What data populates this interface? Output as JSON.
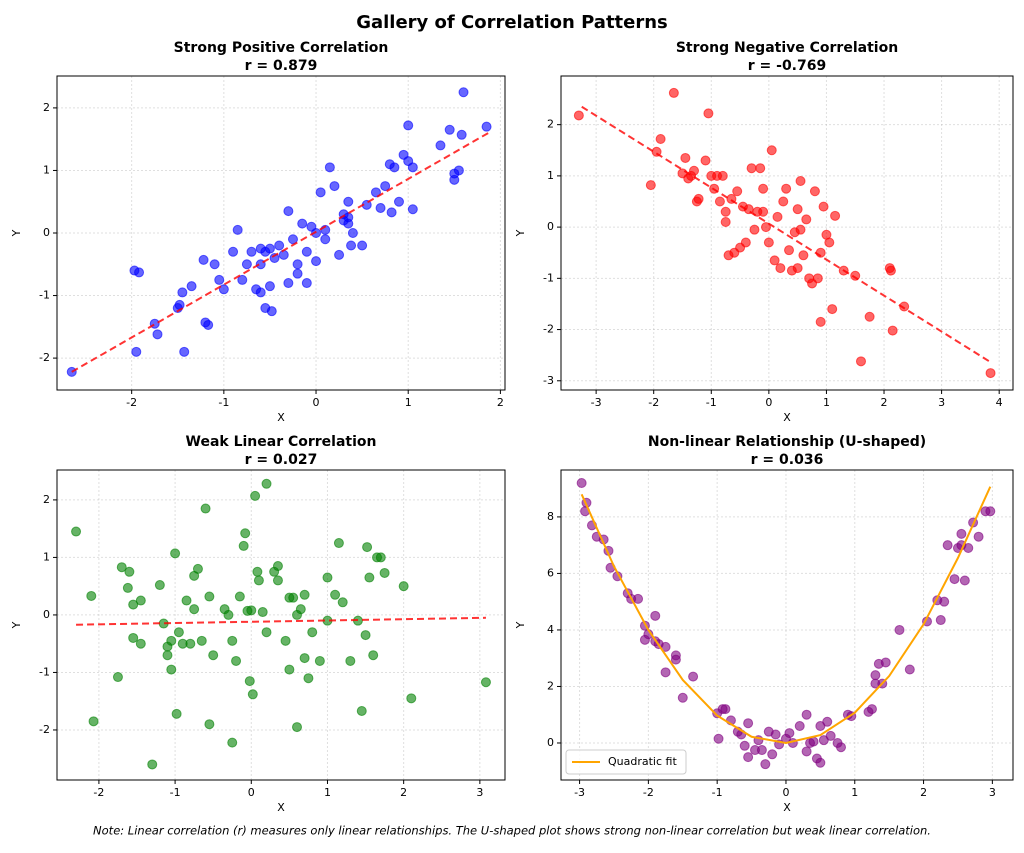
{
  "title": "Gallery of Correlation Patterns",
  "note": "Note: Linear correlation (r) measures only linear relationships. The U-shaped plot shows strong non-linear correlation but weak linear correlation.",
  "chart_data": [
    {
      "type": "scatter",
      "title": "Strong Positive Correlation",
      "subtitle": "r = 0.879",
      "xlabel": "X",
      "ylabel": "Y",
      "color": "#0000ff",
      "grid": true,
      "xlim": [
        -2.81,
        2.05
      ],
      "ylim": [
        -2.51,
        2.51
      ],
      "xticks": [
        -2,
        -1,
        0,
        1,
        2
      ],
      "yticks": [
        -2,
        -1,
        0,
        1,
        2
      ],
      "x": [
        -2.65,
        -1.97,
        -1.92,
        -1.95,
        -1.75,
        -1.72,
        -1.5,
        -1.48,
        -1.45,
        -1.43,
        -1.35,
        -1.22,
        -1.2,
        -1.17,
        -1.1,
        -1.05,
        -1.0,
        -0.9,
        -0.85,
        -0.8,
        -0.75,
        -0.7,
        -0.65,
        -0.6,
        -0.6,
        -0.55,
        -0.55,
        -0.5,
        -0.5,
        -0.48,
        -0.45,
        -0.4,
        -0.35,
        -0.3,
        -0.3,
        -0.25,
        -0.2,
        -0.2,
        -0.15,
        -0.1,
        -0.1,
        -0.05,
        0.0,
        0.0,
        0.05,
        0.1,
        0.1,
        0.15,
        0.2,
        0.25,
        0.3,
        0.35,
        0.35,
        0.35,
        0.38,
        0.4,
        0.5,
        0.55,
        0.65,
        0.7,
        0.75,
        0.8,
        0.82,
        0.85,
        0.9,
        0.95,
        1.0,
        1.0,
        1.05,
        1.05,
        1.35,
        1.45,
        1.5,
        1.55,
        1.58,
        1.6,
        1.85,
        1.5,
        0.3,
        -0.6
      ],
      "values": [
        -2.22,
        -0.6,
        -0.63,
        -1.9,
        -1.45,
        -1.62,
        -1.2,
        -1.15,
        -0.95,
        -1.9,
        -0.85,
        -0.43,
        -1.43,
        -1.47,
        -0.5,
        -0.75,
        -0.9,
        -0.3,
        0.05,
        -0.75,
        -0.5,
        -0.3,
        -0.9,
        -0.95,
        -0.5,
        -0.3,
        -1.2,
        -0.25,
        -0.85,
        -1.25,
        -0.4,
        -0.2,
        -0.35,
        -0.8,
        0.35,
        -0.1,
        -0.5,
        -0.65,
        0.15,
        -0.3,
        -0.8,
        0.1,
        -0.45,
        0.0,
        0.65,
        -0.1,
        0.05,
        1.05,
        0.75,
        -0.35,
        0.3,
        0.25,
        0.15,
        0.5,
        -0.2,
        0.0,
        -0.2,
        0.45,
        0.65,
        0.4,
        0.75,
        1.1,
        0.33,
        1.05,
        0.5,
        1.25,
        1.15,
        1.72,
        0.38,
        1.05,
        1.4,
        1.65,
        0.85,
        1.0,
        1.57,
        2.25,
        1.7,
        0.95,
        0.2,
        -0.25
      ],
      "fit": {
        "color": "#ff0000",
        "dashed": true,
        "x": [
          -2.65,
          1.87
        ],
        "values": [
          -2.22,
          1.6
        ]
      }
    },
    {
      "type": "scatter",
      "title": "Strong Negative Correlation",
      "subtitle": "r = -0.769",
      "xlabel": "X",
      "ylabel": "Y",
      "color": "#ff0000",
      "grid": true,
      "xlim": [
        -3.61,
        4.24
      ],
      "ylim": [
        -3.18,
        2.95
      ],
      "xticks": [
        -3,
        -2,
        -1,
        0,
        1,
        2,
        3,
        4
      ],
      "yticks": [
        -3,
        -2,
        -1,
        0,
        1,
        2
      ],
      "x": [
        -3.3,
        -2.05,
        -1.95,
        -1.88,
        -1.65,
        -1.5,
        -1.45,
        -1.4,
        -1.35,
        -1.3,
        -1.25,
        -1.22,
        -1.1,
        -1.05,
        -1.0,
        -0.95,
        -0.9,
        -0.85,
        -0.8,
        -0.75,
        -0.75,
        -0.7,
        -0.65,
        -0.6,
        -0.55,
        -0.5,
        -0.45,
        -0.4,
        -0.35,
        -0.3,
        -0.25,
        -0.2,
        -0.15,
        -0.1,
        -0.05,
        0.0,
        0.05,
        0.1,
        0.15,
        0.2,
        0.25,
        0.3,
        0.35,
        0.4,
        0.45,
        0.5,
        0.55,
        0.6,
        0.65,
        0.7,
        0.75,
        0.8,
        0.85,
        0.9,
        0.95,
        1.0,
        1.05,
        1.1,
        1.15,
        1.3,
        1.5,
        1.6,
        1.75,
        2.1,
        2.12,
        2.15,
        2.35,
        3.85,
        0.55,
        0.5,
        -0.1,
        0.9
      ],
      "values": [
        2.18,
        0.82,
        1.47,
        1.72,
        2.62,
        1.05,
        1.35,
        0.95,
        1.0,
        1.1,
        0.5,
        0.55,
        1.3,
        2.22,
        1.0,
        0.75,
        1.0,
        0.5,
        1.0,
        0.3,
        0.1,
        -0.55,
        0.55,
        -0.5,
        0.7,
        -0.4,
        0.4,
        -0.3,
        0.35,
        1.15,
        -0.05,
        0.3,
        1.15,
        0.75,
        0.0,
        -0.3,
        1.5,
        -0.65,
        0.2,
        -0.8,
        0.5,
        0.75,
        -0.45,
        -0.85,
        -0.1,
        0.35,
        0.9,
        -0.55,
        0.15,
        -1.0,
        -1.1,
        0.7,
        -1.0,
        -1.85,
        0.4,
        -0.15,
        -0.3,
        -1.6,
        0.22,
        -0.85,
        -0.95,
        -2.62,
        -1.75,
        -0.8,
        -0.85,
        -2.02,
        -1.55,
        -2.85,
        -0.05,
        -0.8,
        0.3,
        -0.5
      ],
      "fit": {
        "color": "#ff0000",
        "dashed": true,
        "x": [
          -3.25,
          3.87
        ],
        "values": [
          2.35,
          -2.65
        ]
      }
    },
    {
      "type": "scatter",
      "title": "Weak Linear Correlation",
      "subtitle": "r = 0.027",
      "xlabel": "X",
      "ylabel": "Y",
      "color": "#008000",
      "grid": true,
      "xlim": [
        -2.55,
        3.33
      ],
      "ylim": [
        -2.87,
        2.52
      ],
      "xticks": [
        -2,
        -1,
        0,
        1,
        2,
        3
      ],
      "yticks": [
        -2,
        -1,
        0,
        1,
        2
      ],
      "x": [
        -2.3,
        -2.1,
        -2.07,
        -1.75,
        -1.7,
        -1.6,
        -1.62,
        -1.55,
        -1.55,
        -1.45,
        -1.45,
        -1.3,
        -1.2,
        -1.15,
        -1.1,
        -1.05,
        -1.05,
        -1.0,
        -0.98,
        -0.95,
        -0.9,
        -0.85,
        -0.8,
        -0.75,
        -0.75,
        -0.7,
        -0.65,
        -0.6,
        -0.55,
        -0.55,
        -0.5,
        -0.35,
        -0.3,
        -0.25,
        -0.25,
        -0.2,
        -0.15,
        -0.1,
        -0.08,
        -0.05,
        0.0,
        -0.02,
        0.02,
        0.05,
        0.08,
        0.1,
        0.15,
        0.2,
        0.2,
        0.3,
        0.35,
        0.35,
        0.45,
        0.5,
        0.5,
        0.55,
        0.6,
        0.65,
        0.7,
        0.7,
        0.75,
        0.8,
        0.9,
        1.0,
        1.0,
        1.1,
        1.15,
        1.2,
        1.3,
        1.4,
        1.45,
        1.5,
        1.52,
        1.55,
        1.6,
        1.65,
        1.7,
        1.75,
        2.0,
        2.1,
        3.08,
        0.6,
        -1.1
      ],
      "values": [
        1.45,
        0.33,
        -1.85,
        -1.08,
        0.83,
        0.75,
        0.47,
        0.18,
        -0.4,
        0.25,
        -0.5,
        -2.6,
        0.52,
        -0.15,
        -0.7,
        -0.45,
        -0.95,
        1.07,
        -1.72,
        -0.3,
        -0.5,
        0.25,
        -0.5,
        0.68,
        0.1,
        0.8,
        -0.45,
        1.85,
        0.32,
        -1.9,
        -0.7,
        0.1,
        0.0,
        -2.22,
        -0.45,
        -0.8,
        0.32,
        1.2,
        1.42,
        0.07,
        0.08,
        -1.15,
        -1.38,
        2.07,
        0.75,
        0.6,
        0.05,
        2.28,
        -0.3,
        0.75,
        0.85,
        0.6,
        -0.45,
        0.3,
        -0.95,
        0.3,
        -1.95,
        0.1,
        0.35,
        -0.75,
        -1.1,
        -0.3,
        -0.8,
        0.65,
        -0.1,
        0.35,
        1.25,
        0.22,
        -0.8,
        -0.1,
        -1.67,
        -0.35,
        1.18,
        0.65,
        -0.7,
        1.0,
        1.0,
        0.73,
        0.5,
        -1.45,
        -1.17,
        0.0,
        -0.55
      ],
      "fit": {
        "color": "#ff0000",
        "dashed": true,
        "x": [
          -2.3,
          3.08
        ],
        "values": [
          -0.17,
          -0.05
        ]
      }
    },
    {
      "type": "scatter",
      "title": "Non-linear Relationship (U-shaped)",
      "subtitle": "r = 0.036",
      "xlabel": "X",
      "ylabel": "Y",
      "color": "#800080",
      "grid": true,
      "legend": "lower left",
      "xlim": [
        -3.27,
        3.3
      ],
      "ylim": [
        -1.31,
        9.66
      ],
      "xticks": [
        -3,
        -2,
        -1,
        0,
        1,
        2,
        3
      ],
      "yticks": [
        0,
        2,
        4,
        6,
        8
      ],
      "x": [
        -2.97,
        -2.9,
        -2.92,
        -2.82,
        -2.75,
        -2.65,
        -2.58,
        -2.55,
        -2.45,
        -2.3,
        -2.25,
        -2.15,
        -2.05,
        -2.05,
        -2.0,
        -1.9,
        -1.9,
        -1.85,
        -1.75,
        -1.75,
        -1.6,
        -1.6,
        -1.35,
        -1.5,
        -1.0,
        -0.98,
        -0.92,
        -0.88,
        -0.8,
        -0.7,
        -0.65,
        -0.6,
        -0.55,
        -0.55,
        -0.45,
        -0.4,
        -0.35,
        -0.3,
        -0.25,
        -0.2,
        -0.15,
        -0.1,
        0.0,
        0.05,
        0.1,
        0.2,
        0.3,
        0.3,
        0.35,
        0.4,
        0.45,
        0.5,
        0.5,
        0.55,
        0.6,
        0.65,
        0.75,
        0.8,
        0.9,
        0.95,
        1.2,
        1.25,
        1.3,
        1.3,
        1.35,
        1.4,
        1.45,
        1.65,
        1.8,
        2.05,
        2.2,
        2.25,
        2.3,
        2.35,
        2.45,
        2.5,
        2.55,
        2.55,
        2.6,
        2.65,
        2.72,
        2.8,
        2.9,
        2.97
      ],
      "values": [
        9.2,
        8.5,
        8.2,
        7.7,
        7.3,
        7.2,
        6.8,
        6.2,
        5.9,
        5.3,
        5.1,
        5.1,
        4.15,
        3.65,
        3.85,
        4.5,
        3.6,
        3.5,
        3.4,
        2.5,
        2.95,
        3.1,
        2.35,
        1.6,
        1.05,
        0.15,
        1.2,
        1.2,
        0.8,
        0.4,
        0.3,
        -0.1,
        0.7,
        -0.5,
        -0.25,
        0.1,
        -0.25,
        -0.75,
        0.4,
        -0.4,
        0.3,
        -0.05,
        0.15,
        0.35,
        0.0,
        0.6,
        1.0,
        -0.3,
        0.0,
        0.05,
        -0.55,
        -0.7,
        0.6,
        0.1,
        0.75,
        0.25,
        0.0,
        -0.15,
        1.0,
        0.95,
        1.1,
        1.2,
        2.1,
        2.4,
        2.8,
        2.1,
        2.85,
        4.0,
        2.6,
        4.3,
        5.05,
        4.35,
        5.0,
        7.0,
        5.8,
        6.9,
        7.0,
        7.4,
        5.75,
        6.9,
        7.8,
        7.3,
        8.2,
        8.2
      ],
      "fit": {
        "name": "Quadratic fit",
        "color": "#ffa500",
        "dashed": false,
        "x": [
          -2.97,
          -2.5,
          -2,
          -1.5,
          -1,
          -0.5,
          0,
          0.5,
          1,
          1.5,
          2,
          2.5,
          2.97
        ],
        "values": [
          8.8,
          6.25,
          4.0,
          2.23,
          0.97,
          0.22,
          0.0,
          0.28,
          1.07,
          2.37,
          4.2,
          6.55,
          9.07
        ]
      }
    }
  ]
}
